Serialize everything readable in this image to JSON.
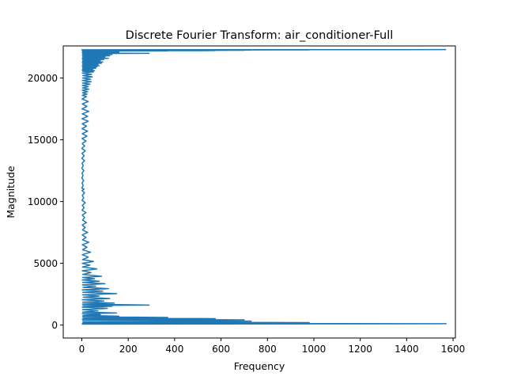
{
  "chart_data": {
    "type": "line",
    "title": "Discrete Fourier Transform: air_conditioner-Full",
    "xlabel": "Frequency",
    "ylabel": "Magnitude",
    "xlim": [
      -80,
      1610
    ],
    "ylim": [
      -1050,
      22600
    ],
    "x_ticks": [
      {
        "value": 0,
        "label": "0"
      },
      {
        "value": 200,
        "label": "200"
      },
      {
        "value": 400,
        "label": "400"
      },
      {
        "value": 600,
        "label": "600"
      },
      {
        "value": 800,
        "label": "800"
      },
      {
        "value": 1000,
        "label": "1000"
      },
      {
        "value": 1200,
        "label": "1200"
      },
      {
        "value": 1400,
        "label": "1400"
      },
      {
        "value": 1600,
        "label": "1600"
      }
    ],
    "y_ticks": [
      {
        "value": 0,
        "label": "0"
      },
      {
        "value": 5000,
        "label": "5000"
      },
      {
        "value": 10000,
        "label": "10000"
      },
      {
        "value": 15000,
        "label": "15000"
      },
      {
        "value": 20000,
        "label": "20000"
      }
    ],
    "grid": false,
    "legend": "none",
    "series": [
      {
        "color": "#1f77b4",
        "x": [
          0,
          1570,
          3,
          980,
          5,
          730,
          4,
          700,
          2,
          575,
          6,
          370,
          3,
          160,
          5,
          80,
          2,
          150,
          4,
          70,
          3,
          110,
          2,
          130,
          5,
          290,
          3,
          140,
          4,
          95,
          2,
          120,
          6,
          75,
          3,
          150,
          4,
          90,
          2,
          115,
          5,
          60,
          3,
          100,
          4,
          75,
          2,
          55,
          3,
          85,
          4,
          40,
          2,
          65,
          3,
          35,
          2,
          50,
          3,
          28,
          2,
          38,
          3,
          22,
          2,
          30,
          3,
          18,
          2,
          25,
          3,
          15,
          2,
          20,
          3,
          12,
          2,
          18,
          1,
          10,
          2,
          15,
          1,
          8,
          2,
          12,
          1,
          10,
          0,
          6,
          1,
          8,
          0,
          5,
          1,
          9,
          0,
          6,
          1,
          12,
          0,
          10,
          1,
          15,
          0,
          12,
          2,
          18,
          1,
          22,
          2,
          25,
          1,
          20,
          2,
          28,
          1,
          25,
          2,
          30,
          1,
          22,
          2,
          28,
          1,
          20,
          2,
          22,
          3,
          25,
          2,
          30,
          3,
          28,
          2,
          35,
          3,
          40,
          2,
          38,
          3,
          45,
          4,
          42,
          2,
          50,
          3,
          55,
          2,
          48,
          3,
          60,
          4,
          65,
          2,
          75,
          3,
          70,
          4,
          85,
          2,
          90,
          3,
          80,
          4,
          95,
          2,
          115,
          3,
          100,
          4,
          120,
          2,
          130,
          5,
          110,
          3,
          290,
          4,
          140,
          2,
          160,
          6,
          150,
          3,
          120,
          4,
          145,
          5,
          155,
          3,
          370,
          6,
          575,
          4,
          700,
          5,
          730,
          3,
          980,
          0,
          1570
        ],
        "y": [
          80,
          110,
          150,
          200,
          250,
          320,
          380,
          420,
          480,
          520,
          560,
          620,
          680,
          720,
          780,
          850,
          920,
          980,
          1050,
          1150,
          1250,
          1350,
          1450,
          1520,
          1580,
          1620,
          1700,
          1780,
          1850,
          1950,
          2050,
          2150,
          2250,
          2350,
          2450,
          2550,
          2650,
          2750,
          2850,
          2950,
          3050,
          3150,
          3250,
          3350,
          3450,
          3550,
          3650,
          3750,
          3850,
          3950,
          4100,
          4250,
          4400,
          4550,
          4700,
          4850,
          5000,
          5150,
          5300,
          5500,
          5700,
          5900,
          6100,
          6300,
          6500,
          6700,
          6900,
          7100,
          7300,
          7500,
          7700,
          7900,
          8100,
          8300,
          8500,
          8700,
          8900,
          9100,
          9300,
          9500,
          9700,
          9900,
          10100,
          10300,
          10500,
          10700,
          10900,
          11000,
          11100,
          11300,
          11500,
          11700,
          11900,
          12100,
          12300,
          12500,
          12700,
          12900,
          13100,
          13300,
          13500,
          13700,
          13900,
          14100,
          14300,
          14500,
          14700,
          14900,
          15100,
          15300,
          15500,
          15700,
          15900,
          16100,
          16300,
          16500,
          16700,
          16900,
          17100,
          17300,
          17500,
          17700,
          17900,
          18100,
          18300,
          18500,
          18600,
          18700,
          18800,
          18900,
          19000,
          19100,
          19200,
          19300,
          19400,
          19500,
          19600,
          19700,
          19800,
          19900,
          20000,
          20100,
          20200,
          20300,
          20400,
          20500,
          20550,
          20600,
          20650,
          20700,
          20750,
          20800,
          20850,
          20900,
          20950,
          21000,
          21050,
          21100,
          21150,
          21200,
          21250,
          21300,
          21350,
          21400,
          21450,
          21500,
          21550,
          21600,
          21650,
          21700,
          21750,
          21800,
          21850,
          21900,
          21925,
          21950,
          21975,
          22000,
          22025,
          22050,
          22075,
          22100,
          22110,
          22120,
          22130,
          22140,
          22150,
          22160,
          22170,
          22180,
          22190,
          22200,
          22210,
          22220,
          22230,
          22240,
          22250,
          22260,
          22270,
          22280,
          22290,
          22300
        ]
      }
    ]
  }
}
